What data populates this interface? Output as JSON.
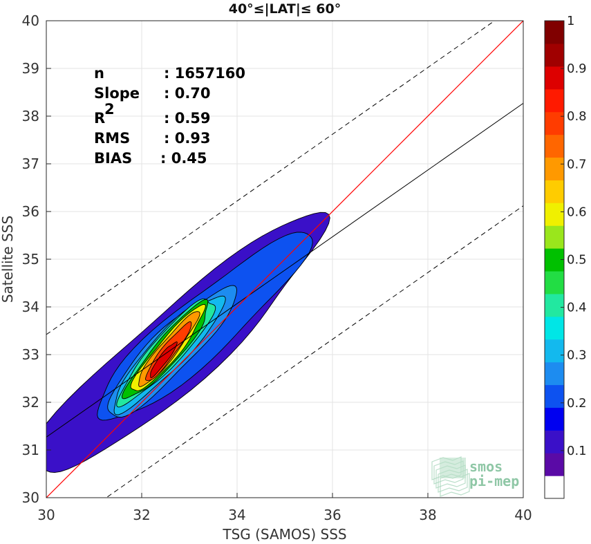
{
  "chart_data": {
    "type": "contour-scatter",
    "title": "40°≤|LAT|≤ 60°",
    "xlabel": "TSG (SAMOS) SSS",
    "ylabel": "Satellite SSS",
    "xlim": [
      30,
      40
    ],
    "ylim": [
      30,
      40
    ],
    "xticks": [
      "30",
      "32",
      "34",
      "36",
      "38",
      "40"
    ],
    "yticks": [
      "30",
      "31",
      "32",
      "33",
      "34",
      "35",
      "36",
      "37",
      "38",
      "39",
      "40"
    ],
    "grid": true,
    "stats": [
      {
        "label": "n",
        "value": ": 1657160"
      },
      {
        "label": "Slope",
        "value": ": 0.70"
      },
      {
        "label": "R",
        "sup": "2",
        "value": ": 0.59"
      },
      {
        "label": "RMS",
        "value": ": 0.93"
      },
      {
        "label": "BIAS",
        "value": ": 0.45"
      }
    ],
    "regression": {
      "slope": 0.7,
      "y_at_x30": 31.27,
      "y_at_x40": 38.27
    },
    "identity_line": {
      "color": "#ff0000"
    },
    "rms_band_offset": 2.15,
    "colorbar": {
      "min": 0,
      "max": 1,
      "ticks": [
        "0.1",
        "0.2",
        "0.3",
        "0.4",
        "0.5",
        "0.6",
        "0.7",
        "0.8",
        "0.9",
        "1"
      ],
      "colors": [
        "#ffffff",
        "#5a0aa6",
        "#3a10c8",
        "#0000f0",
        "#0d52f0",
        "#1d8cf0",
        "#13b9ee",
        "#00e6e6",
        "#22e8a0",
        "#22dd44",
        "#00c000",
        "#9ae61c",
        "#f0f000",
        "#ffcc00",
        "#ff9900",
        "#ff6600",
        "#ff3c00",
        "#ff1a00",
        "#dd0000",
        "#a00000",
        "#800000"
      ]
    },
    "contours": [
      {
        "level": 0.05,
        "color": "#3a10c8",
        "cx": 32.75,
        "cy": 33.15,
        "rx": 3.05,
        "ry": 1.05,
        "skew": 0.82
      },
      {
        "level": 0.15,
        "color": "#0d52f0",
        "cx": 33.25,
        "cy": 33.55,
        "rx": 2.25,
        "ry": 0.8,
        "skew": 0.8
      },
      {
        "level": 0.25,
        "color": "#1d8cf0",
        "cx": 32.6,
        "cy": 33.05,
        "rx": 1.35,
        "ry": 0.6,
        "skew": 0.9
      },
      {
        "level": 0.35,
        "color": "#13b9ee",
        "cx": 32.55,
        "cy": 33.05,
        "rx": 1.15,
        "ry": 0.52,
        "skew": 0.95
      },
      {
        "level": 0.45,
        "color": "#22e8a0",
        "cx": 32.55,
        "cy": 33.1,
        "rx": 1.0,
        "ry": 0.46,
        "skew": 1.0
      },
      {
        "level": 0.55,
        "color": "#00c000",
        "cx": 32.55,
        "cy": 33.1,
        "rx": 0.88,
        "ry": 0.4,
        "skew": 1.05
      },
      {
        "level": 0.65,
        "color": "#f0f000",
        "cx": 32.55,
        "cy": 33.1,
        "rx": 0.76,
        "ry": 0.34,
        "skew": 1.1
      },
      {
        "level": 0.75,
        "color": "#ff9900",
        "cx": 32.55,
        "cy": 33.1,
        "rx": 0.64,
        "ry": 0.28,
        "skew": 1.15
      },
      {
        "level": 0.85,
        "color": "#ff3c00",
        "cx": 32.55,
        "cy": 33.05,
        "rx": 0.48,
        "ry": 0.22,
        "skew": 1.2
      },
      {
        "level": 0.95,
        "color": "#dd0000",
        "cx": 32.45,
        "cy": 32.9,
        "rx": 0.28,
        "ry": 0.14,
        "skew": 1.2
      }
    ],
    "watermark": {
      "line1": "smos",
      "line2": "pi-mep"
    }
  }
}
